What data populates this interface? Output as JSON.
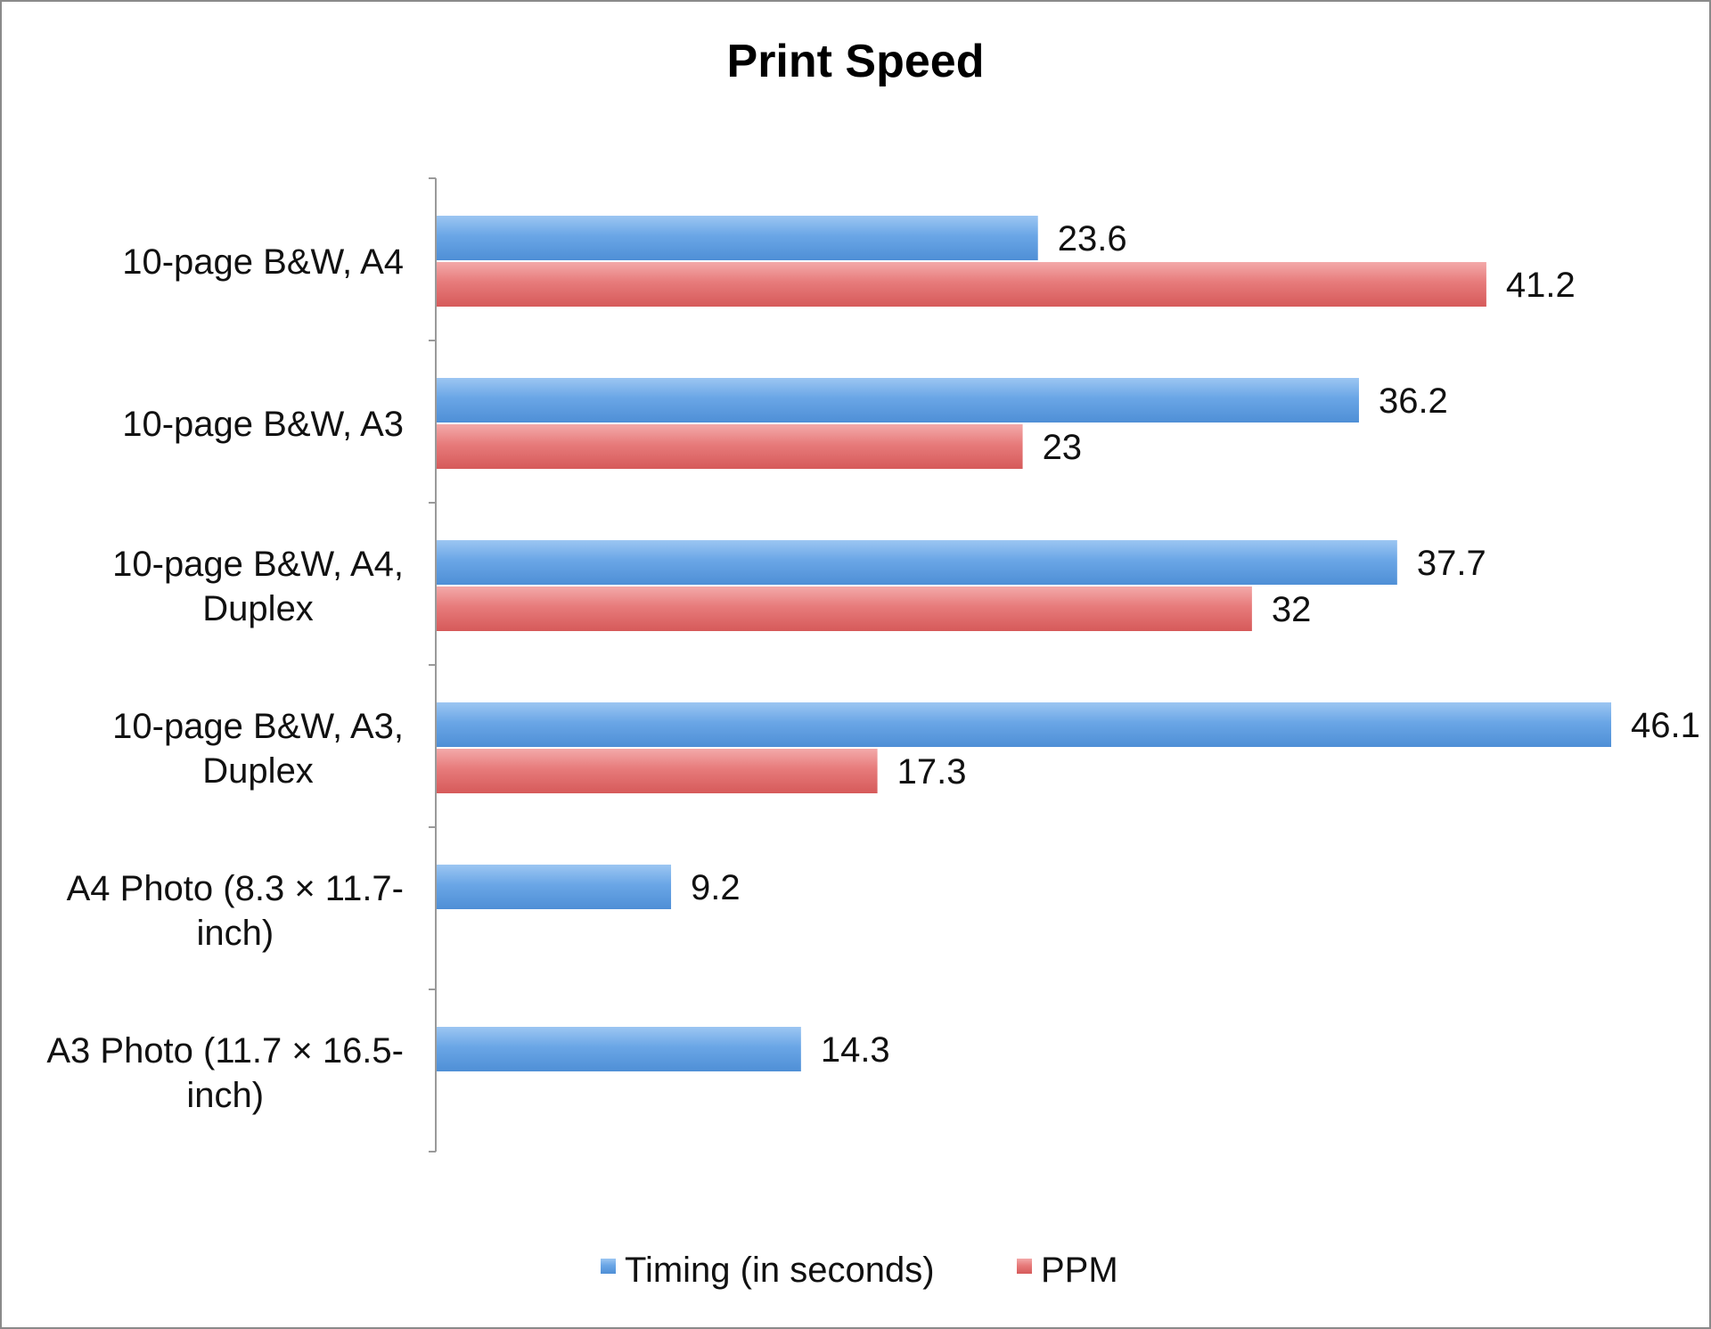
{
  "chart_data": {
    "type": "bar",
    "orientation": "horizontal",
    "title": "Print Speed",
    "xlabel": "",
    "ylabel": "",
    "xlim": [
      0,
      46.1
    ],
    "grid": false,
    "legend_position": "bottom",
    "categories": [
      "10-page B&W, A4",
      "10-page B&W, A3",
      "10-page B&W, A4, Duplex",
      "10-page B&W, A3, Duplex",
      "A4 Photo (8.3 × 11.7-inch)",
      "A3 Photo (11.7 × 16.5-inch)"
    ],
    "category_lines": [
      [
        "10-page B&W, A4"
      ],
      [
        "10-page B&W, A3"
      ],
      [
        "10-page B&W, A4,",
        "Duplex"
      ],
      [
        "10-page B&W, A3,",
        "Duplex"
      ],
      [
        "A4 Photo (8.3 × 11.7-",
        "inch)"
      ],
      [
        "A3 Photo (11.7 × 16.5-",
        "inch)"
      ]
    ],
    "series": [
      {
        "name": "Timing (in seconds)",
        "color": "#5b9bd5",
        "values": [
          23.6,
          36.2,
          37.7,
          46.1,
          9.2,
          14.3
        ],
        "labels": [
          "23.6",
          "36.2",
          "37.7",
          "46.1",
          "9.2",
          "14.3"
        ]
      },
      {
        "name": "PPM",
        "color": "#e06666",
        "values": [
          41.2,
          23,
          32,
          17.3,
          null,
          null
        ],
        "labels": [
          "41.2",
          "23",
          "32",
          "17.3",
          "",
          ""
        ]
      }
    ]
  }
}
